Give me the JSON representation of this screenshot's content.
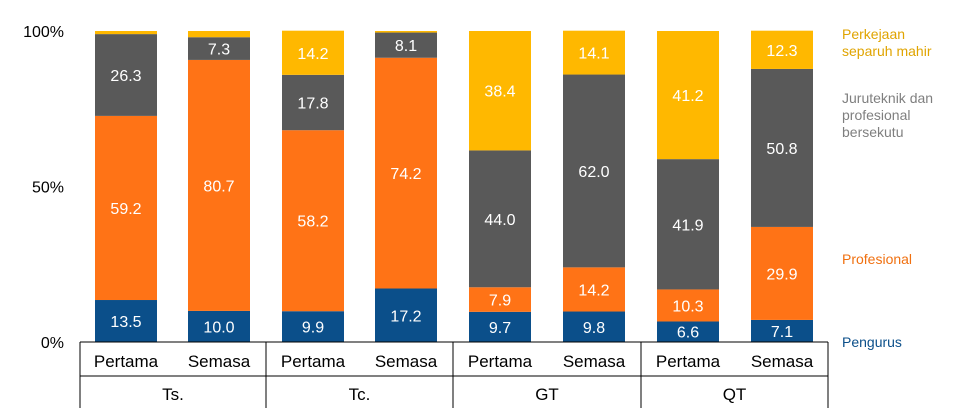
{
  "chart_data": {
    "type": "bar",
    "stacked": true,
    "normalized": true,
    "title": "",
    "xlabel": "",
    "ylabel": "",
    "ylim": [
      0,
      100
    ],
    "yticks": [
      {
        "value": 0,
        "label": "0%"
      },
      {
        "value": 50,
        "label": "50%"
      },
      {
        "value": 100,
        "label": "100%"
      }
    ],
    "groups": [
      {
        "label": "Ts.",
        "bars": [
          {
            "label": "Pertama",
            "values": {
              "pengurus": 13.5,
              "profesional": 59.2,
              "juruteknik": 26.3,
              "separuh": 1.0
            }
          },
          {
            "label": "Semasa",
            "values": {
              "pengurus": 10.0,
              "profesional": 80.7,
              "juruteknik": 7.3,
              "separuh": 2.0
            }
          }
        ]
      },
      {
        "label": "Tc.",
        "bars": [
          {
            "label": "Pertama",
            "values": {
              "pengurus": 9.9,
              "profesional": 58.2,
              "juruteknik": 17.8,
              "separuh": 14.2
            }
          },
          {
            "label": "Semasa",
            "values": {
              "pengurus": 17.2,
              "profesional": 74.2,
              "juruteknik": 8.1,
              "separuh": 0.5
            }
          }
        ]
      },
      {
        "label": "GT",
        "bars": [
          {
            "label": "Pertama",
            "values": {
              "pengurus": 9.7,
              "profesional": 7.9,
              "juruteknik": 44.0,
              "separuh": 38.4
            }
          },
          {
            "label": "Semasa",
            "values": {
              "pengurus": 9.8,
              "profesional": 14.2,
              "juruteknik": 62.0,
              "separuh": 14.1
            }
          }
        ]
      },
      {
        "label": "QT",
        "bars": [
          {
            "label": "Pertama",
            "values": {
              "pengurus": 6.6,
              "profesional": 10.3,
              "juruteknik": 41.9,
              "separuh": 41.2
            }
          },
          {
            "label": "Semasa",
            "values": {
              "pengurus": 7.1,
              "profesional": 29.9,
              "juruteknik": 50.8,
              "separuh": 12.3
            }
          }
        ]
      }
    ],
    "series": [
      {
        "key": "pengurus",
        "name": "Pengurus",
        "color": "#0b4f8a",
        "label_color": "#ffffff"
      },
      {
        "key": "profesional",
        "name": "Profesional",
        "color": "#ff7316",
        "label_color": "#ffffff"
      },
      {
        "key": "juruteknik",
        "name": "Juruteknik dan\nprofesional\nbersekutu",
        "color": "#595959",
        "label_color": "#ffffff"
      },
      {
        "key": "separuh",
        "name": "Perkejaan\nseparuh mahir",
        "color": "#ffb800",
        "label_color": "#ffffff"
      }
    ],
    "legend": {
      "placement": "right",
      "items": [
        {
          "text": "Perkejaan\nseparuh mahir",
          "color": "#e0a400"
        },
        {
          "text": "Juruteknik dan\nprofesional\nbersekutu",
          "color": "#7f7f7f"
        },
        {
          "text": "Profesional",
          "color": "#f07010"
        },
        {
          "text": "Pengurus",
          "color": "#0b4f8a"
        }
      ]
    }
  }
}
